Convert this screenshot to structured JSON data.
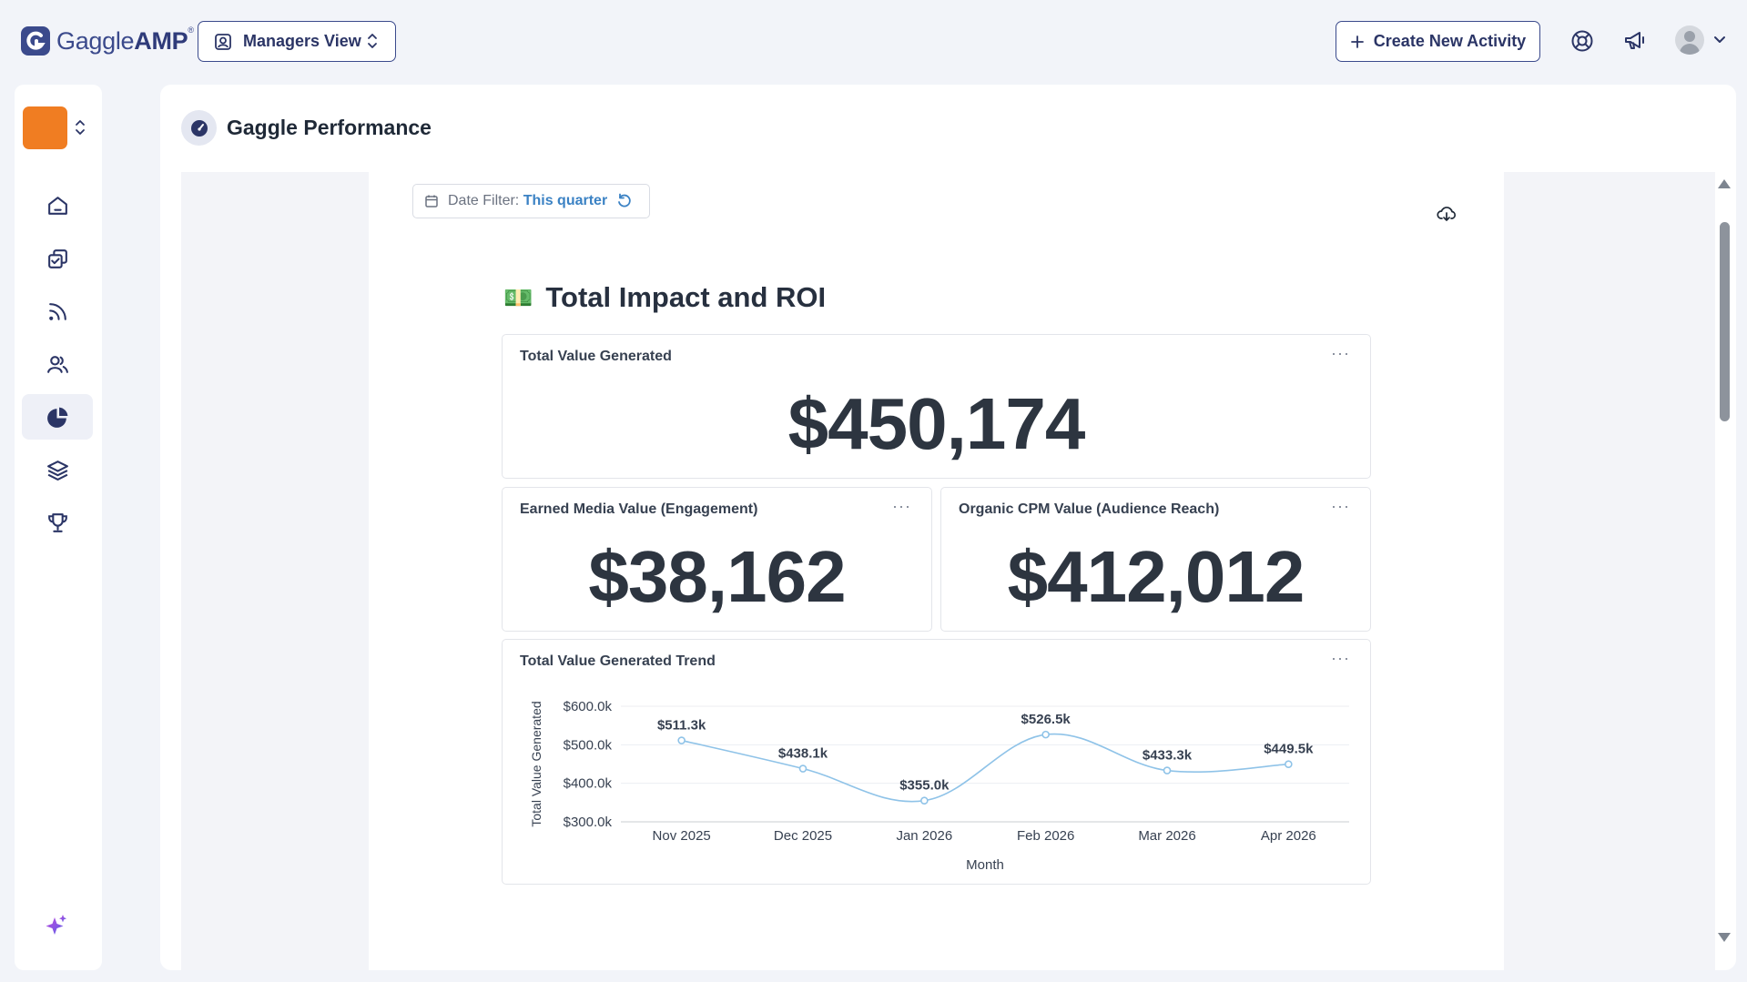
{
  "app": {
    "logo_text": "GaggleAMP",
    "view_switch": "Managers View",
    "create_button": "Create New Activity"
  },
  "page": {
    "title": "Gaggle Performance"
  },
  "filters": {
    "date_label": "Date Filter:",
    "date_value": "This quarter"
  },
  "section": {
    "emoji": "💵",
    "title": "Total Impact and ROI"
  },
  "cards": {
    "total_value": {
      "title": "Total Value Generated",
      "value": "$450,174",
      "menu": "···"
    },
    "earned_media": {
      "title": "Earned Media Value (Engagement)",
      "value": "$38,162",
      "menu": "···"
    },
    "organic_cpm": {
      "title": "Organic CPM Value (Audience Reach)",
      "value": "$412,012",
      "menu": "···"
    },
    "trend": {
      "title": "Total Value Generated Trend",
      "menu": "···"
    }
  },
  "icons": {
    "nav": [
      "home-icon",
      "tasks-icon",
      "feed-icon",
      "users-icon",
      "analytics-icon",
      "layers-icon",
      "trophy-icon"
    ],
    "active_nav": "analytics-icon"
  },
  "colors": {
    "brand": "#3b4a8c",
    "org_swatch": "#f07d22",
    "line": "#8fc3e8",
    "link": "#3b82c4"
  },
  "chart_data": {
    "type": "line",
    "title": "Total Value Generated Trend",
    "xlabel": "Month",
    "ylabel": "Total Value Generated",
    "categories": [
      "Nov 2025",
      "Dec 2025",
      "Jan 2026",
      "Feb 2026",
      "Mar 2026",
      "Apr 2026"
    ],
    "series": [
      {
        "values": [
          511.3,
          438.1,
          355.0,
          526.5,
          433.3,
          449.5
        ],
        "labels": [
          "$511.3k",
          "$438.1k",
          "$355.0k",
          "$526.5k",
          "$433.3k",
          "$449.5k"
        ]
      }
    ],
    "yticks": [
      "$300.0k",
      "$400.0k",
      "$500.0k",
      "$600.0k"
    ],
    "ytick_values": [
      300,
      400,
      500,
      600
    ],
    "ylim": [
      300,
      600
    ],
    "grid": true,
    "legend": "none"
  }
}
